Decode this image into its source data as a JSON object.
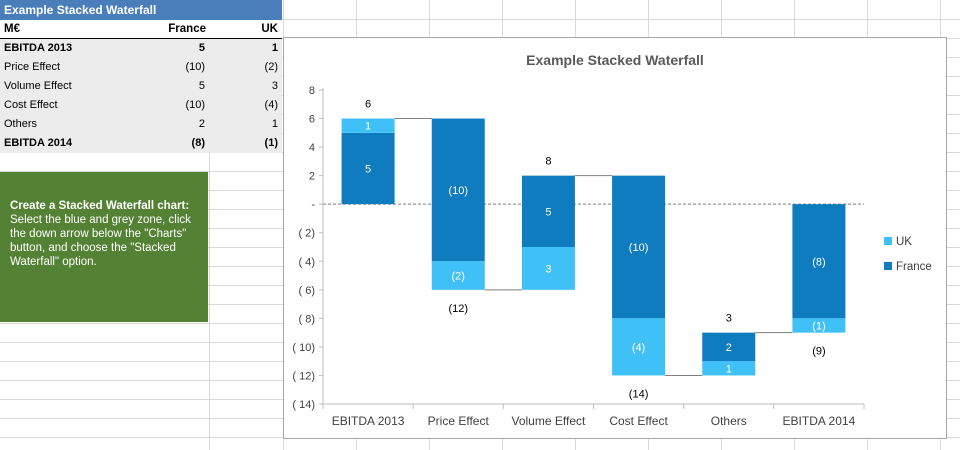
{
  "table": {
    "title": "Example Stacked Waterfall",
    "header": {
      "label": "M€",
      "france": "France",
      "uk": "UK"
    },
    "rows": [
      {
        "label": "EBITDA 2013",
        "france": "5",
        "uk": "1",
        "bold": true
      },
      {
        "label": "Price Effect",
        "france": "(10)",
        "uk": "(2)",
        "bold": false
      },
      {
        "label": "Volume Effect",
        "france": "5",
        "uk": "3",
        "bold": false
      },
      {
        "label": "Cost Effect",
        "france": "(10)",
        "uk": "(4)",
        "bold": false
      },
      {
        "label": "Others",
        "france": "2",
        "uk": "1",
        "bold": false
      },
      {
        "label": "EBITDA 2014",
        "france": "(8)",
        "uk": "(1)",
        "bold": true
      }
    ]
  },
  "instructions": {
    "title": "Create a Stacked Waterfall chart:",
    "body": "Select the blue and grey zone, click the down arrow below the \"Charts\" button, and choose the \"Stacked Waterfall\" option."
  },
  "colors": {
    "france": "#0e7cbf",
    "uk": "#3fc1f7",
    "table_title": "#4a7ebb",
    "instructions": "#548235"
  },
  "chart_data": {
    "type": "bar",
    "subtype": "stacked-waterfall",
    "title": "Example Stacked Waterfall",
    "categories": [
      "EBITDA 2013",
      "Price Effect",
      "Volume Effect",
      "Cost Effect",
      "Others",
      "EBITDA 2014"
    ],
    "series": [
      {
        "name": "France",
        "values": [
          5,
          -10,
          5,
          -10,
          2,
          -8
        ]
      },
      {
        "name": "UK",
        "values": [
          1,
          -2,
          3,
          -4,
          1,
          -1
        ]
      }
    ],
    "stack_order": [
      [
        "France",
        "UK"
      ],
      [
        "France",
        "UK"
      ],
      [
        "UK",
        "France"
      ],
      [
        "France",
        "UK"
      ],
      [
        "UK",
        "France"
      ],
      [
        "France",
        "UK"
      ]
    ],
    "bases": [
      0,
      6,
      -6,
      2,
      -12,
      0
    ],
    "segment_labels": [
      [
        "5",
        "1"
      ],
      [
        "(10)",
        "(2)"
      ],
      [
        "3",
        "5"
      ],
      [
        "(10)",
        "(4)"
      ],
      [
        "1",
        "2"
      ],
      [
        "(8)",
        "(1)"
      ]
    ],
    "total_labels": [
      "6",
      "(12)",
      "8",
      "(14)",
      "3",
      "(9)"
    ],
    "total_label_side": [
      "above",
      "below",
      "above",
      "below",
      "above",
      "below"
    ],
    "y_ticks": [
      8,
      6,
      4,
      2,
      0,
      -2,
      -4,
      -6,
      -8,
      -10,
      -12,
      -14
    ],
    "y_tick_labels": [
      "8",
      "6",
      "4",
      "2",
      "-",
      "( 2)",
      "( 4)",
      "( 6)",
      "( 8)",
      "( 10)",
      "( 12)",
      "( 14)"
    ],
    "ylim": [
      -14,
      8
    ],
    "grid": false,
    "legend": {
      "position": "right",
      "entries": [
        "UK",
        "France"
      ]
    }
  }
}
